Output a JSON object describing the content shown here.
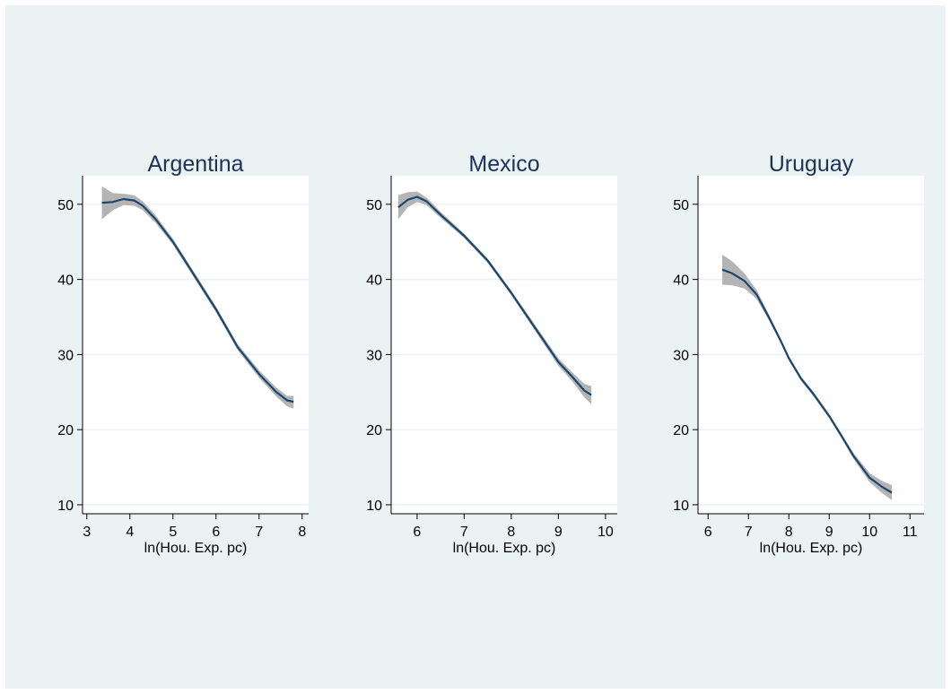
{
  "colors": {
    "figure_background": "#eaf2f3",
    "plot_background": "#ffffff",
    "line": "#1a476f",
    "band": "#b4b4b4",
    "grid": "#eaf2f3",
    "title": "#1e3259"
  },
  "chart_data": [
    {
      "type": "line",
      "title": "Argentina",
      "xlabel": "ln(Hou. Exp. pc)",
      "ylabel": "",
      "xlim": [
        2.9,
        8.15
      ],
      "ylim": [
        8.8,
        53.8
      ],
      "xticks": [
        3,
        4,
        5,
        6,
        7,
        8
      ],
      "yticks": [
        10,
        20,
        30,
        40,
        50
      ],
      "grid": true,
      "band": "confidence interval",
      "series": [
        {
          "x": [
            3.35,
            3.6,
            3.85,
            4.1,
            4.3,
            4.6,
            5.0,
            5.5,
            6.0,
            6.5,
            7.0,
            7.4,
            7.65,
            7.8
          ],
          "y": [
            50.2,
            50.3,
            50.7,
            50.5,
            49.8,
            48.0,
            45.0,
            40.5,
            36.0,
            31.0,
            27.4,
            25.0,
            23.9,
            23.7
          ],
          "lower": [
            48.0,
            49.2,
            49.9,
            49.8,
            49.2,
            47.5,
            44.6,
            40.1,
            35.6,
            30.6,
            26.9,
            24.4,
            23.1,
            22.8
          ],
          "upper": [
            52.4,
            51.5,
            51.4,
            51.2,
            50.4,
            48.5,
            45.4,
            40.9,
            36.4,
            31.4,
            27.9,
            25.6,
            24.5,
            24.5
          ]
        }
      ]
    },
    {
      "type": "line",
      "title": "Mexico",
      "xlabel": "ln(Hou. Exp. pc)",
      "ylabel": "",
      "xlim": [
        5.45,
        10.25
      ],
      "ylim": [
        8.8,
        53.8
      ],
      "xticks": [
        6,
        7,
        8,
        9,
        10
      ],
      "yticks": [
        10,
        20,
        30,
        40,
        50
      ],
      "grid": true,
      "band": "confidence interval",
      "series": [
        {
          "x": [
            5.6,
            5.8,
            6.0,
            6.2,
            6.5,
            7.0,
            7.5,
            8.0,
            8.5,
            9.0,
            9.3,
            9.55,
            9.7
          ],
          "y": [
            49.6,
            50.6,
            51.0,
            50.4,
            48.6,
            45.8,
            42.5,
            38.2,
            33.6,
            29.0,
            27.0,
            25.2,
            24.6
          ],
          "lower": [
            48.0,
            49.6,
            50.3,
            49.9,
            48.2,
            45.5,
            42.2,
            37.9,
            33.2,
            28.5,
            26.4,
            24.3,
            23.4
          ],
          "upper": [
            51.2,
            51.6,
            51.7,
            50.9,
            49.0,
            46.1,
            42.8,
            38.5,
            34.0,
            29.5,
            27.6,
            26.1,
            25.8
          ]
        }
      ]
    },
    {
      "type": "line",
      "title": "Uruguay",
      "xlabel": "ln(Hou. Exp. pc)",
      "ylabel": "",
      "xlim": [
        5.75,
        11.35
      ],
      "ylim": [
        8.8,
        53.8
      ],
      "xticks": [
        6,
        7,
        8,
        9,
        10,
        11
      ],
      "yticks": [
        10,
        20,
        30,
        40,
        50
      ],
      "grid": true,
      "band": "confidence interval",
      "series": [
        {
          "x": [
            6.35,
            6.6,
            6.9,
            7.2,
            7.5,
            7.8,
            8.0,
            8.3,
            8.6,
            9.0,
            9.3,
            9.6,
            10.0,
            10.3,
            10.55
          ],
          "y": [
            41.3,
            40.8,
            39.8,
            38.0,
            35.0,
            31.8,
            29.5,
            26.8,
            24.8,
            21.8,
            19.2,
            16.5,
            13.6,
            12.4,
            11.6
          ],
          "lower": [
            39.3,
            39.2,
            38.8,
            37.4,
            34.6,
            31.5,
            29.2,
            26.5,
            24.5,
            21.5,
            18.9,
            16.1,
            13.0,
            11.6,
            10.6
          ],
          "upper": [
            43.3,
            42.4,
            40.8,
            38.6,
            35.4,
            32.1,
            29.8,
            27.1,
            25.1,
            22.1,
            19.5,
            16.9,
            14.2,
            13.2,
            12.6
          ]
        }
      ]
    }
  ]
}
